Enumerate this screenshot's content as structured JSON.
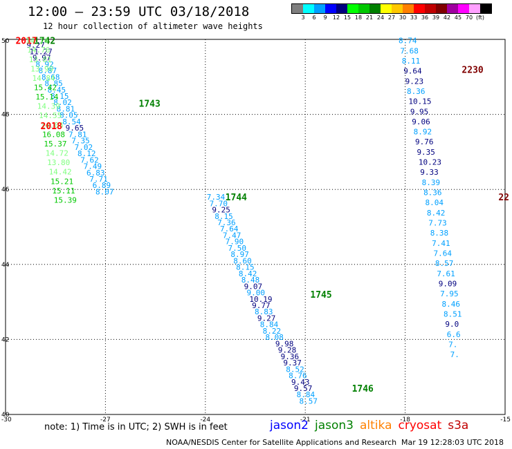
{
  "header": {
    "title": "12:00 – 23:59 UTC 03/18/2018",
    "subtitle": "12 hour collection of altimeter wave heights"
  },
  "colorbar": {
    "colors": [
      "#7f7f7f",
      "#00ffff",
      "#00a0ff",
      "#0000ff",
      "#00007f",
      "#00ff00",
      "#00c800",
      "#008000",
      "#ffff00",
      "#ffc800",
      "#ff8000",
      "#ff0000",
      "#c00000",
      "#800000",
      "#a000a0",
      "#ff00ff",
      "#ffa0ff",
      "#000000"
    ],
    "labels": [
      "3",
      "6",
      "9",
      "12",
      "15",
      "18",
      "21",
      "24",
      "27",
      "30",
      "33",
      "36",
      "39",
      "42",
      "45",
      "70",
      "(ft)"
    ]
  },
  "note": "note: 1) Time is in UTC; 2) SWH is in feet",
  "legend": [
    {
      "name": "jason2",
      "color": "#0000ff"
    },
    {
      "name": "jason3",
      "color": "#008000"
    },
    {
      "name": "altika",
      "color": "#ff8000"
    },
    {
      "name": "cryosat",
      "color": "#ff0000"
    },
    {
      "name": "s3a",
      "color": "#c00000"
    }
  ],
  "footer": {
    "left": "NOAA/NESDIS Center for Satellite Applications and Research",
    "right": "Mar 19 12:28:03 UTC 2018"
  },
  "chart_data": {
    "type": "scatter",
    "xlim": [
      -30,
      -15
    ],
    "ylim": [
      40,
      50
    ],
    "x_ticks": [
      "-30",
      "-27",
      "-24",
      "-21",
      "-18",
      "-15"
    ],
    "y_ticks": [
      "40",
      "42",
      "44",
      "46",
      "48",
      "50"
    ],
    "grid": true,
    "tracks": [
      {
        "label": "1742",
        "label_color": "#008000",
        "label_pos": [
          -29.15,
          49.97
        ],
        "points": [
          {
            "x": -29.37,
            "y": 49.85,
            "v": "9.27",
            "c": "#00007f"
          },
          {
            "x": -29.28,
            "y": 49.68,
            "v": "11.27",
            "c": "#00007f"
          },
          {
            "x": -29.19,
            "y": 49.51,
            "v": "9.97",
            "c": "#00007f"
          },
          {
            "x": -29.1,
            "y": 49.34,
            "v": "8.92",
            "c": "#00a0ff"
          },
          {
            "x": -29.01,
            "y": 49.17,
            "v": "8.87",
            "c": "#00a0ff"
          },
          {
            "x": -28.92,
            "y": 49.0,
            "v": "8.68",
            "c": "#00a0ff"
          },
          {
            "x": -28.83,
            "y": 48.83,
            "v": "8.85",
            "c": "#00a0ff"
          },
          {
            "x": -28.74,
            "y": 48.66,
            "v": "8.45",
            "c": "#00a0ff"
          },
          {
            "x": -28.65,
            "y": 48.49,
            "v": "8.15",
            "c": "#00a0ff"
          },
          {
            "x": -28.56,
            "y": 48.32,
            "v": "8.02",
            "c": "#00a0ff"
          },
          {
            "x": -28.47,
            "y": 48.15,
            "v": "8.81",
            "c": "#00a0ff"
          },
          {
            "x": -28.38,
            "y": 47.98,
            "v": "8.05",
            "c": "#00a0ff"
          },
          {
            "x": -28.29,
            "y": 47.81,
            "v": "8.54",
            "c": "#00a0ff"
          },
          {
            "x": -28.2,
            "y": 47.64,
            "v": "9.65",
            "c": "#00007f"
          },
          {
            "x": -28.11,
            "y": 47.47,
            "v": "7.81",
            "c": "#00a0ff"
          },
          {
            "x": -28.02,
            "y": 47.3,
            "v": "7.35",
            "c": "#00a0ff"
          },
          {
            "x": -27.93,
            "y": 47.13,
            "v": "7.02",
            "c": "#00a0ff"
          },
          {
            "x": -27.84,
            "y": 46.96,
            "v": "8.12",
            "c": "#00a0ff"
          },
          {
            "x": -27.75,
            "y": 46.79,
            "v": "7.62",
            "c": "#00a0ff"
          },
          {
            "x": -27.66,
            "y": 46.62,
            "v": "7.49",
            "c": "#00a0ff"
          },
          {
            "x": -27.57,
            "y": 46.45,
            "v": "6.83",
            "c": "#00a0ff"
          },
          {
            "x": -27.48,
            "y": 46.28,
            "v": "7.71",
            "c": "#00a0ff"
          },
          {
            "x": -27.39,
            "y": 46.11,
            "v": "6.89",
            "c": "#00a0ff"
          },
          {
            "x": -27.3,
            "y": 45.94,
            "v": "8.07",
            "c": "#00a0ff"
          }
        ]
      },
      {
        "label": "1743",
        "label_color": "#008000",
        "label_pos": [
          -26.0,
          48.3
        ],
        "points": []
      },
      {
        "label": "1744",
        "label_color": "#008000",
        "label_pos": [
          -23.4,
          45.8
        ],
        "points": [
          {
            "x": -23.96,
            "y": 45.8,
            "v": "7.34",
            "c": "#00a0ff"
          },
          {
            "x": -23.88,
            "y": 45.63,
            "v": "7.70",
            "c": "#00a0ff"
          },
          {
            "x": -23.8,
            "y": 45.46,
            "v": "9.25",
            "c": "#00007f"
          },
          {
            "x": -23.72,
            "y": 45.29,
            "v": "8.15",
            "c": "#00a0ff"
          },
          {
            "x": -23.64,
            "y": 45.12,
            "v": "7.36",
            "c": "#00a0ff"
          },
          {
            "x": -23.56,
            "y": 44.95,
            "v": "7.64",
            "c": "#00a0ff"
          },
          {
            "x": -23.48,
            "y": 44.78,
            "v": "7.47",
            "c": "#00a0ff"
          },
          {
            "x": -23.4,
            "y": 44.61,
            "v": "7.90",
            "c": "#00a0ff"
          },
          {
            "x": -23.32,
            "y": 44.44,
            "v": "7.50",
            "c": "#00a0ff"
          },
          {
            "x": -23.24,
            "y": 44.27,
            "v": "8.97",
            "c": "#00a0ff"
          },
          {
            "x": -23.16,
            "y": 44.1,
            "v": "8.60",
            "c": "#00a0ff"
          },
          {
            "x": -23.08,
            "y": 43.93,
            "v": "8.15",
            "c": "#00a0ff"
          },
          {
            "x": -23.0,
            "y": 43.76,
            "v": "8.42",
            "c": "#00a0ff"
          },
          {
            "x": -22.92,
            "y": 43.59,
            "v": "8.48",
            "c": "#00a0ff"
          },
          {
            "x": -22.84,
            "y": 43.42,
            "v": "9.07",
            "c": "#00007f"
          },
          {
            "x": -22.76,
            "y": 43.25,
            "v": "9.00",
            "c": "#00a0ff"
          },
          {
            "x": -22.68,
            "y": 43.08,
            "v": "10.19",
            "c": "#00007f"
          },
          {
            "x": -22.6,
            "y": 42.91,
            "v": "9.77",
            "c": "#00007f"
          },
          {
            "x": -22.52,
            "y": 42.74,
            "v": "8.83",
            "c": "#00a0ff"
          },
          {
            "x": -22.44,
            "y": 42.57,
            "v": "9.27",
            "c": "#00007f"
          },
          {
            "x": -22.36,
            "y": 42.4,
            "v": "8.84",
            "c": "#00a0ff"
          },
          {
            "x": -22.28,
            "y": 42.23,
            "v": "8.22",
            "c": "#00a0ff"
          },
          {
            "x": -22.2,
            "y": 42.06,
            "v": "8.08",
            "c": "#00a0ff"
          }
        ]
      },
      {
        "label": "1745",
        "label_color": "#008000",
        "label_pos": [
          -20.85,
          43.2
        ],
        "points": [
          {
            "x": -21.9,
            "y": 41.89,
            "v": "9.98",
            "c": "#00007f"
          },
          {
            "x": -21.82,
            "y": 41.72,
            "v": "9.28",
            "c": "#00007f"
          },
          {
            "x": -21.74,
            "y": 41.55,
            "v": "9.36",
            "c": "#00007f"
          },
          {
            "x": -21.66,
            "y": 41.38,
            "v": "9.37",
            "c": "#00007f"
          },
          {
            "x": -21.58,
            "y": 41.21,
            "v": "8.52",
            "c": "#00a0ff"
          },
          {
            "x": -21.5,
            "y": 41.04,
            "v": "8.76",
            "c": "#00a0ff"
          },
          {
            "x": -21.42,
            "y": 40.87,
            "v": "9.43",
            "c": "#00007f"
          },
          {
            "x": -21.34,
            "y": 40.7,
            "v": "9.57",
            "c": "#00007f"
          },
          {
            "x": -21.26,
            "y": 40.53,
            "v": "8.84",
            "c": "#00a0ff"
          },
          {
            "x": -21.18,
            "y": 40.36,
            "v": "8.57",
            "c": "#00a0ff"
          }
        ]
      },
      {
        "label": "1746",
        "label_color": "#008000",
        "label_pos": [
          -19.6,
          40.7
        ],
        "points": []
      },
      {
        "label": "2017",
        "label_color": "#ff0000",
        "label_pos": [
          -29.7,
          49.97
        ],
        "points": []
      },
      {
        "label": "2018",
        "label_color": "#ff0000",
        "label_pos": [
          -28.95,
          47.7
        ],
        "points": [
          {
            "x": -29.4,
            "y": 49.97,
            "v": "14.14",
            "c": "#80ff80"
          },
          {
            "x": -29.35,
            "y": 49.72,
            "v": "14.76",
            "c": "#80ff80"
          },
          {
            "x": -29.3,
            "y": 49.47,
            "v": "13.81",
            "c": "#80ff80"
          },
          {
            "x": -29.25,
            "y": 49.22,
            "v": "13.99",
            "c": "#80ff80"
          },
          {
            "x": -29.2,
            "y": 48.97,
            "v": "14.84",
            "c": "#80ff80"
          },
          {
            "x": -29.15,
            "y": 48.72,
            "v": "15.42",
            "c": "#00c800"
          },
          {
            "x": -29.1,
            "y": 48.47,
            "v": "15.14",
            "c": "#00c800"
          },
          {
            "x": -29.05,
            "y": 48.22,
            "v": "14.39",
            "c": "#80ff80"
          },
          {
            "x": -29.0,
            "y": 47.97,
            "v": "14.55",
            "c": "#80ff80"
          },
          {
            "x": -28.95,
            "y": 47.72,
            "v": "14.04",
            "c": "#80ff80"
          },
          {
            "x": -28.9,
            "y": 47.47,
            "v": "16.08",
            "c": "#00c800"
          },
          {
            "x": -28.85,
            "y": 47.22,
            "v": "15.37",
            "c": "#00c800"
          },
          {
            "x": -28.8,
            "y": 46.97,
            "v": "14.72",
            "c": "#80ff80"
          },
          {
            "x": -28.75,
            "y": 46.72,
            "v": "13.80",
            "c": "#80ff80"
          },
          {
            "x": -28.7,
            "y": 46.47,
            "v": "14.42",
            "c": "#80ff80"
          },
          {
            "x": -28.65,
            "y": 46.22,
            "v": "15.21",
            "c": "#00c800"
          },
          {
            "x": -28.6,
            "y": 45.97,
            "v": "15.11",
            "c": "#00c800"
          },
          {
            "x": -28.55,
            "y": 45.72,
            "v": "15.39",
            "c": "#00c800"
          }
        ]
      },
      {
        "label": "2230",
        "label_color": "#800000",
        "label_pos": [
          -16.3,
          49.2
        ],
        "points": [
          {
            "x": -18.2,
            "y": 49.97,
            "v": "8.74",
            "c": "#00a0ff"
          },
          {
            "x": -18.15,
            "y": 49.7,
            "v": "7.68",
            "c": "#00a0ff"
          },
          {
            "x": -18.1,
            "y": 49.43,
            "v": "8.11",
            "c": "#00a0ff"
          },
          {
            "x": -18.05,
            "y": 49.16,
            "v": "9.64",
            "c": "#00007f"
          },
          {
            "x": -18.0,
            "y": 48.89,
            "v": "9.23",
            "c": "#00007f"
          },
          {
            "x": -17.95,
            "y": 48.62,
            "v": "8.36",
            "c": "#00a0ff"
          },
          {
            "x": -17.9,
            "y": 48.35,
            "v": "10.15",
            "c": "#00007f"
          },
          {
            "x": -17.85,
            "y": 48.08,
            "v": "9.95",
            "c": "#00007f"
          },
          {
            "x": -17.8,
            "y": 47.81,
            "v": "9.06",
            "c": "#00007f"
          },
          {
            "x": -17.75,
            "y": 47.54,
            "v": "8.92",
            "c": "#00a0ff"
          },
          {
            "x": -17.7,
            "y": 47.27,
            "v": "9.76",
            "c": "#00007f"
          },
          {
            "x": -17.65,
            "y": 47.0,
            "v": "9.35",
            "c": "#00007f"
          },
          {
            "x": -17.6,
            "y": 46.73,
            "v": "10.23",
            "c": "#00007f"
          },
          {
            "x": -17.55,
            "y": 46.46,
            "v": "9.33",
            "c": "#00007f"
          },
          {
            "x": -17.5,
            "y": 46.19,
            "v": "8.39",
            "c": "#00a0ff"
          },
          {
            "x": -17.45,
            "y": 45.92,
            "v": "8.36",
            "c": "#00a0ff"
          },
          {
            "x": -17.4,
            "y": 45.65,
            "v": "8.04",
            "c": "#00a0ff"
          },
          {
            "x": -17.35,
            "y": 45.38,
            "v": "8.42",
            "c": "#00a0ff"
          },
          {
            "x": -17.3,
            "y": 45.11,
            "v": "7.73",
            "c": "#00a0ff"
          },
          {
            "x": -17.25,
            "y": 44.84,
            "v": "8.38",
            "c": "#00a0ff"
          },
          {
            "x": -17.2,
            "y": 44.57,
            "v": "7.41",
            "c": "#00a0ff"
          },
          {
            "x": -17.15,
            "y": 44.3,
            "v": "7.64",
            "c": "#00a0ff"
          },
          {
            "x": -17.1,
            "y": 44.03,
            "v": "8.57",
            "c": "#00a0ff"
          },
          {
            "x": -17.05,
            "y": 43.76,
            "v": "7.61",
            "c": "#00a0ff"
          },
          {
            "x": -17.0,
            "y": 43.49,
            "v": "9.09",
            "c": "#00007f"
          },
          {
            "x": -16.95,
            "y": 43.22,
            "v": "7.95",
            "c": "#00a0ff"
          },
          {
            "x": -16.9,
            "y": 42.95,
            "v": "8.46",
            "c": "#00a0ff"
          },
          {
            "x": -16.85,
            "y": 42.68,
            "v": "8.51",
            "c": "#00a0ff"
          },
          {
            "x": -16.8,
            "y": 42.41,
            "v": "9.0",
            "c": "#00007f"
          },
          {
            "x": -16.75,
            "y": 42.14,
            "v": "6.6",
            "c": "#00a0ff"
          },
          {
            "x": -16.7,
            "y": 41.87,
            "v": "7.",
            "c": "#00a0ff"
          },
          {
            "x": -16.65,
            "y": 41.6,
            "v": "7.",
            "c": "#00a0ff"
          }
        ]
      },
      {
        "label": "22",
        "label_color": "#800000",
        "label_pos": [
          -15.2,
          45.8
        ],
        "points": []
      }
    ]
  }
}
